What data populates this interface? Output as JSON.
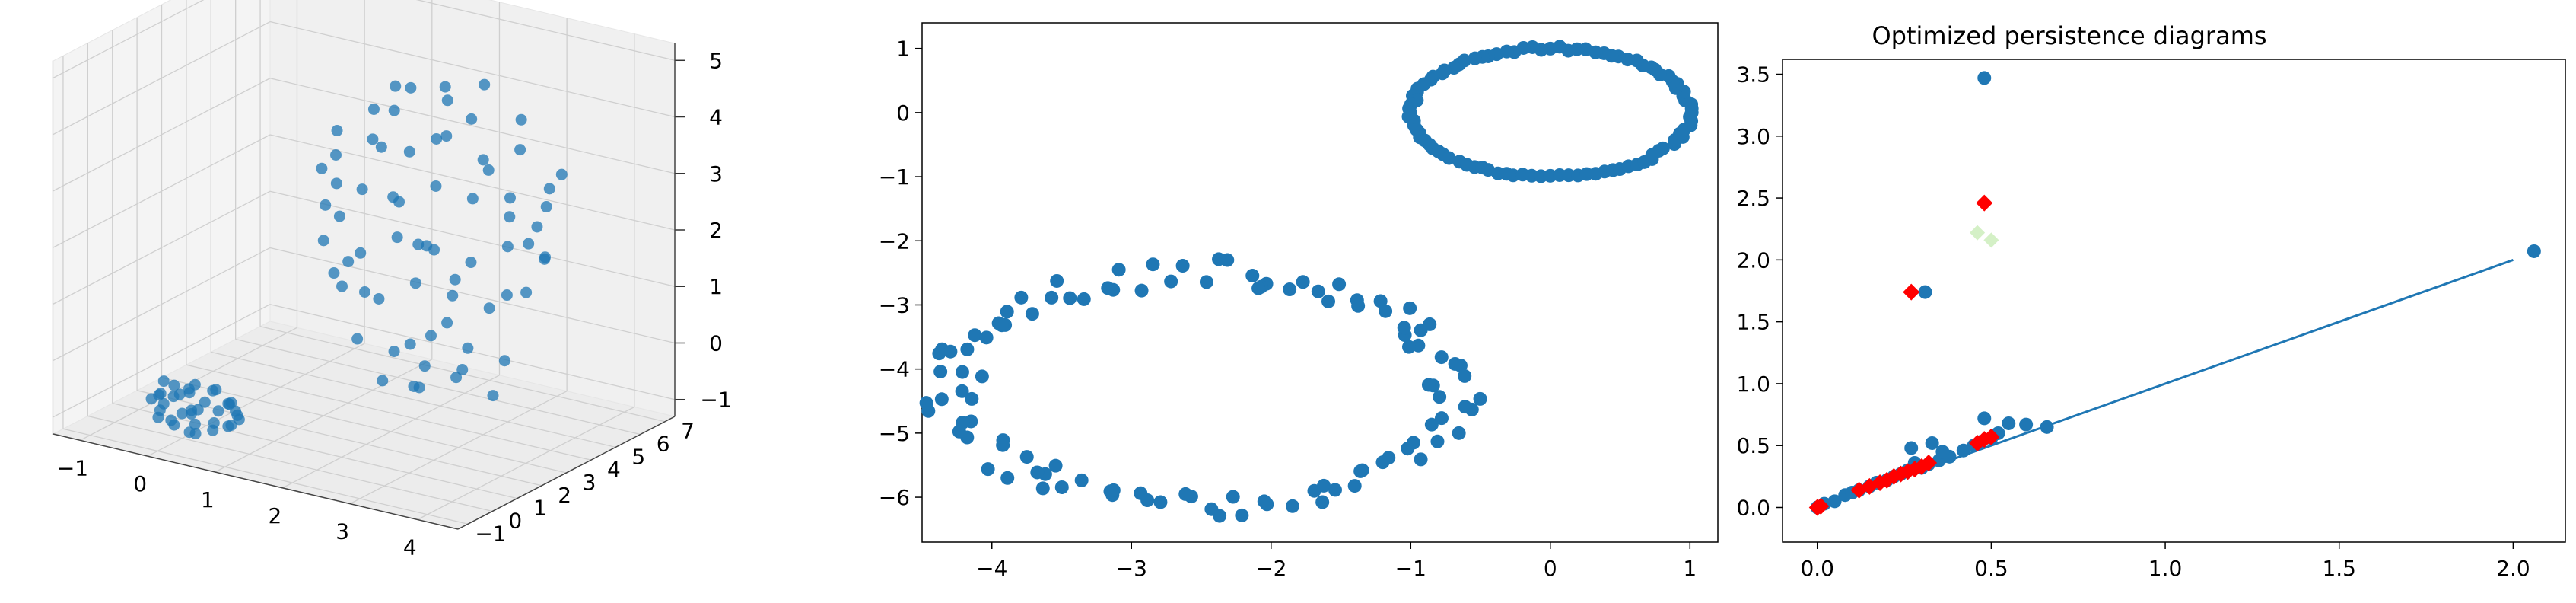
{
  "colors": {
    "points": "#1f77b4",
    "diagram_line": "#1f77b4",
    "optimized_points": "#ff0000",
    "faint_points": "#b8e6a0"
  },
  "chart_data": [
    {
      "type": "scatter",
      "projection": "3d",
      "title": "",
      "xlabel": "",
      "ylabel": "",
      "zlabel": "",
      "xlim": [
        -1.4,
        4.6
      ],
      "ylim": [
        -1.4,
        7.4
      ],
      "zlim": [
        -1.3,
        5.3
      ],
      "x_ticks": [
        "−1",
        "0",
        "1",
        "2",
        "3",
        "4"
      ],
      "y_ticks": [
        "−1",
        "0",
        "1",
        "2",
        "3",
        "4",
        "5",
        "6",
        "7"
      ],
      "z_ticks": [
        "−1",
        "0",
        "1",
        "2",
        "3",
        "4",
        "5"
      ],
      "grid": true,
      "series": [
        {
          "shape": "small torus",
          "center": [
            0.4,
            -0.6,
            -0.5
          ],
          "points": [
            [
              0.9,
              -0.6,
              -0.3
            ],
            [
              0.8,
              -0.2,
              -0.4
            ],
            [
              0.5,
              0.0,
              -0.3
            ],
            [
              0.1,
              0.0,
              -0.4
            ],
            [
              -0.2,
              -0.2,
              -0.3
            ],
            [
              -0.1,
              -0.6,
              -0.4
            ],
            [
              0.2,
              -0.9,
              -0.3
            ],
            [
              0.6,
              -1.0,
              -0.4
            ],
            [
              0.9,
              -0.6,
              -0.7
            ],
            [
              0.8,
              -0.2,
              -0.8
            ],
            [
              0.5,
              0.1,
              -0.7
            ],
            [
              0.1,
              0.1,
              -0.8
            ],
            [
              -0.2,
              -0.2,
              -0.7
            ],
            [
              -0.1,
              -0.7,
              -0.8
            ],
            [
              0.2,
              -1.0,
              -0.7
            ],
            [
              0.6,
              -1.1,
              -0.8
            ],
            [
              1.0,
              -0.5,
              -0.5
            ],
            [
              0.7,
              0.0,
              -0.5
            ],
            [
              0.3,
              0.1,
              -0.6
            ],
            [
              -0.2,
              -0.4,
              -0.5
            ],
            [
              0.0,
              -0.9,
              -0.6
            ],
            [
              0.4,
              -1.1,
              -0.5
            ],
            [
              0.8,
              -0.9,
              -0.6
            ],
            [
              1.1,
              -0.7,
              -0.5
            ],
            [
              0.3,
              -0.3,
              -0.2
            ],
            [
              0.6,
              -0.4,
              -0.2
            ],
            [
              0.4,
              -0.8,
              -0.2
            ],
            [
              0.1,
              -0.6,
              -0.2
            ],
            [
              0.3,
              -0.3,
              -0.9
            ],
            [
              0.6,
              -0.4,
              -0.9
            ],
            [
              0.4,
              -0.8,
              -0.9
            ],
            [
              0.1,
              -0.6,
              -0.9
            ],
            [
              0.0,
              -0.1,
              -0.5
            ],
            [
              0.9,
              -0.3,
              -0.5
            ],
            [
              0.5,
              -1.0,
              -0.5
            ],
            [
              -0.2,
              -0.7,
              -0.5
            ]
          ]
        },
        {
          "shape": "large sphere-like cloud",
          "center": [
            2.2,
            4.0,
            2.0
          ],
          "points": [
            [
              1.2,
              3.0,
              3.8
            ],
            [
              1.6,
              3.4,
              4.2
            ],
            [
              2.0,
              3.8,
              4.6
            ],
            [
              2.4,
              4.2,
              4.4
            ],
            [
              2.8,
              4.6,
              4.7
            ],
            [
              3.2,
              5.0,
              4.1
            ],
            [
              1.5,
              4.5,
              3.9
            ],
            [
              2.6,
              3.2,
              4.0
            ],
            [
              1.0,
              3.5,
              3.2
            ],
            [
              1.4,
              3.9,
              3.5
            ],
            [
              1.8,
              4.3,
              3.3
            ],
            [
              2.2,
              4.7,
              3.6
            ],
            [
              2.6,
              5.1,
              3.2
            ],
            [
              3.0,
              5.5,
              3.4
            ],
            [
              3.4,
              4.0,
              3.0
            ],
            [
              1.2,
              4.8,
              3.1
            ],
            [
              1.1,
              2.8,
              2.5
            ],
            [
              1.5,
              3.2,
              2.8
            ],
            [
              1.9,
              3.6,
              2.6
            ],
            [
              2.3,
              4.0,
              2.9
            ],
            [
              2.7,
              4.4,
              2.7
            ],
            [
              3.1,
              4.8,
              2.4
            ],
            [
              3.5,
              5.2,
              2.6
            ],
            [
              1.3,
              5.0,
              2.2
            ],
            [
              1.0,
              3.0,
              1.8
            ],
            [
              1.4,
              3.4,
              1.6
            ],
            [
              1.8,
              3.8,
              1.9
            ],
            [
              2.2,
              4.2,
              1.7
            ],
            [
              2.6,
              4.6,
              1.5
            ],
            [
              3.0,
              5.0,
              1.8
            ],
            [
              3.4,
              5.4,
              1.6
            ],
            [
              1.6,
              5.2,
              1.4
            ],
            [
              1.2,
              3.2,
              1.0
            ],
            [
              1.6,
              3.6,
              0.8
            ],
            [
              2.0,
              4.0,
              1.1
            ],
            [
              2.4,
              4.4,
              0.9
            ],
            [
              2.8,
              4.8,
              0.7
            ],
            [
              3.2,
              5.2,
              1.0
            ],
            [
              2.0,
              5.6,
              0.8
            ],
            [
              1.1,
              4.4,
              0.6
            ],
            [
              1.5,
              3.0,
              0.2
            ],
            [
              1.9,
              3.4,
              0.0
            ],
            [
              2.3,
              3.8,
              0.3
            ],
            [
              2.7,
              4.2,
              0.1
            ],
            [
              3.1,
              4.6,
              -0.1
            ],
            [
              2.1,
              5.0,
              0.2
            ],
            [
              1.7,
              4.6,
              -0.2
            ],
            [
              2.5,
              3.0,
              0.0
            ],
            [
              1.8,
              3.2,
              -0.5
            ],
            [
              2.2,
              3.6,
              -0.6
            ],
            [
              2.6,
              4.0,
              -0.4
            ],
            [
              3.0,
              4.4,
              -0.7
            ],
            [
              2.4,
              4.8,
              -0.5
            ],
            [
              1.9,
              4.2,
              -0.8
            ],
            [
              3.6,
              4.2,
              2.2
            ],
            [
              3.7,
              4.6,
              1.9
            ],
            [
              3.5,
              3.6,
              1.4
            ],
            [
              3.8,
              4.0,
              2.6
            ],
            [
              0.9,
              3.8,
              2.6
            ],
            [
              0.8,
              4.2,
              1.9
            ],
            [
              1.0,
              4.0,
              1.2
            ],
            [
              3.3,
              3.4,
              3.6
            ],
            [
              2.0,
              5.2,
              4.3
            ],
            [
              1.7,
              4.0,
              4.5
            ],
            [
              2.9,
              3.8,
              4.3
            ],
            [
              3.4,
              5.6,
              2.8
            ],
            [
              3.8,
              5.0,
              3.3
            ],
            [
              0.9,
              3.2,
              3.0
            ],
            [
              1.3,
              2.6,
              1.4
            ],
            [
              2.6,
              2.8,
              2.2
            ]
          ]
        }
      ]
    },
    {
      "type": "scatter",
      "title": "",
      "xlabel": "",
      "ylabel": "",
      "xlim": [
        -4.5,
        1.2
      ],
      "ylim": [
        -6.7,
        1.4
      ],
      "x_ticks": [
        -4,
        -3,
        -2,
        -1,
        0,
        1
      ],
      "y_ticks": [
        1,
        0,
        -1,
        -2,
        -3,
        -4,
        -5,
        -6
      ],
      "grid": false,
      "series": [
        {
          "shape": "small circle",
          "center": [
            0.0,
            0.0
          ],
          "radius": [
            1.0,
            1.0
          ],
          "n": 96
        },
        {
          "shape": "noisy large circle",
          "center": [
            -2.5,
            -4.3
          ],
          "radius": [
            1.8,
            1.8
          ],
          "n": 110
        }
      ]
    },
    {
      "type": "scatter",
      "title": "Optimized persistence diagrams",
      "xlabel": "",
      "ylabel": "",
      "xlim": [
        -0.1,
        2.15
      ],
      "ylim": [
        -0.28,
        3.62
      ],
      "x_ticks": [
        0.0,
        0.5,
        1.0,
        1.5,
        2.0
      ],
      "x_tick_labels": [
        "0.0",
        "0.5",
        "1.0",
        "1.5",
        "2.0"
      ],
      "y_ticks": [
        0.0,
        0.5,
        1.0,
        1.5,
        2.0,
        2.5,
        3.0,
        3.5
      ],
      "y_tick_labels": [
        "0.0",
        "0.5",
        "1.0",
        "1.5",
        "2.0",
        "2.5",
        "3.0",
        "3.5"
      ],
      "grid": false,
      "diagonal": [
        [
          0.0,
          0.0
        ],
        [
          2.0,
          2.0
        ]
      ],
      "series": [
        {
          "marker": "circle",
          "points": [
            [
              0.48,
              3.47
            ],
            [
              2.06,
              2.07
            ],
            [
              0.31,
              1.74
            ],
            [
              0.48,
              0.72
            ],
            [
              0.55,
              0.68
            ],
            [
              0.6,
              0.67
            ],
            [
              0.66,
              0.65
            ],
            [
              0.0,
              0.0
            ],
            [
              0.02,
              0.03
            ],
            [
              0.05,
              0.05
            ],
            [
              0.08,
              0.1
            ],
            [
              0.1,
              0.12
            ],
            [
              0.12,
              0.14
            ],
            [
              0.15,
              0.17
            ],
            [
              0.17,
              0.2
            ],
            [
              0.2,
              0.22
            ],
            [
              0.22,
              0.25
            ],
            [
              0.24,
              0.27
            ],
            [
              0.26,
              0.3
            ],
            [
              0.27,
              0.48
            ],
            [
              0.3,
              0.32
            ],
            [
              0.32,
              0.35
            ],
            [
              0.33,
              0.52
            ],
            [
              0.35,
              0.38
            ],
            [
              0.38,
              0.41
            ],
            [
              0.42,
              0.46
            ],
            [
              0.45,
              0.5
            ],
            [
              0.47,
              0.53
            ],
            [
              0.5,
              0.56
            ],
            [
              0.52,
              0.6
            ],
            [
              0.36,
              0.45
            ],
            [
              0.28,
              0.36
            ]
          ]
        },
        {
          "marker": "diamond",
          "points": [
            [
              0.48,
              2.46
            ],
            [
              0.27,
              1.74
            ],
            [
              0.0,
              0.0
            ],
            [
              0.01,
              0.01
            ],
            [
              0.12,
              0.14
            ],
            [
              0.15,
              0.17
            ],
            [
              0.18,
              0.2
            ],
            [
              0.2,
              0.22
            ],
            [
              0.22,
              0.25
            ],
            [
              0.24,
              0.27
            ],
            [
              0.26,
              0.29
            ],
            [
              0.28,
              0.31
            ],
            [
              0.3,
              0.33
            ],
            [
              0.32,
              0.36
            ],
            [
              0.46,
              0.52
            ],
            [
              0.48,
              0.55
            ],
            [
              0.5,
              0.57
            ]
          ]
        },
        {
          "marker": "faint-diamond",
          "points": [
            [
              0.46,
              2.22
            ],
            [
              0.5,
              2.16
            ]
          ]
        }
      ]
    }
  ]
}
